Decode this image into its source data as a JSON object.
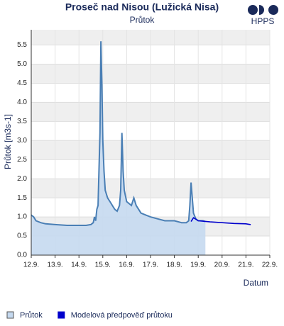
{
  "chart_data": {
    "type": "line",
    "title": "Proseč nad Nisou (Lužická Nisa)",
    "subtitle": "Průtok",
    "logo": "HPPS",
    "y_label": "Průtok [m3s-1]",
    "x_label": "Datum",
    "xlim": [
      12,
      22
    ],
    "xticks": [
      {
        "value": 12,
        "label": "12.9."
      },
      {
        "value": 13,
        "label": "13.9."
      },
      {
        "value": 14,
        "label": "14.9."
      },
      {
        "value": 15,
        "label": "15.9."
      },
      {
        "value": 16,
        "label": "16.9."
      },
      {
        "value": 17,
        "label": "17.9."
      },
      {
        "value": 18,
        "label": "18.9."
      },
      {
        "value": 19,
        "label": "19.9."
      },
      {
        "value": 20,
        "label": "20.9."
      },
      {
        "value": 21,
        "label": "21.9."
      },
      {
        "value": 22,
        "label": "22.9."
      }
    ],
    "ylim": [
      0,
      5.9
    ],
    "yticks": [
      {
        "value": 0,
        "label": "0.0"
      },
      0.5,
      {
        "value": 1,
        "label": "1.0"
      },
      1.5,
      {
        "value": 2,
        "label": "2.0"
      },
      2.5,
      {
        "value": 3,
        "label": "3.0"
      },
      3.5,
      {
        "value": 4,
        "label": "4.0"
      },
      4.5,
      {
        "value": 5,
        "label": "5.0"
      },
      5.5
    ],
    "grid": true,
    "series": [
      {
        "name": "Průtok",
        "color": "#4a7fb5",
        "fill": "#c5d9ef",
        "area": true,
        "x": [
          12.0,
          12.1,
          12.2,
          12.4,
          12.6,
          13.0,
          13.5,
          14.0,
          14.3,
          14.5,
          14.6,
          14.65,
          14.7,
          14.75,
          14.8,
          14.85,
          14.88,
          14.92,
          14.96,
          15.0,
          15.05,
          15.1,
          15.2,
          15.3,
          15.4,
          15.5,
          15.6,
          15.7,
          15.75,
          15.8,
          15.85,
          15.9,
          16.0,
          16.2,
          16.3,
          16.4,
          16.5,
          16.6,
          16.8,
          17.0,
          17.3,
          17.6,
          18.0,
          18.3,
          18.5,
          18.6,
          18.65,
          18.7,
          18.75,
          18.8,
          18.9,
          19.0,
          19.2,
          19.3
        ],
        "values": [
          1.05,
          1.0,
          0.9,
          0.85,
          0.82,
          0.8,
          0.78,
          0.78,
          0.78,
          0.8,
          0.85,
          1.0,
          0.9,
          1.2,
          1.3,
          2.5,
          3.2,
          5.6,
          4.5,
          3.0,
          2.2,
          1.7,
          1.5,
          1.4,
          1.3,
          1.2,
          1.15,
          1.3,
          1.7,
          3.2,
          2.2,
          1.7,
          1.4,
          1.3,
          1.5,
          1.3,
          1.2,
          1.1,
          1.05,
          1.0,
          0.95,
          0.9,
          0.9,
          0.85,
          0.85,
          0.9,
          1.3,
          1.9,
          1.5,
          1.1,
          0.95,
          0.9,
          0.9,
          0.88
        ]
      },
      {
        "name": "Modelová předpověď průtoku",
        "color": "#0000cc",
        "area": false,
        "x": [
          18.7,
          18.8,
          19.0,
          19.5,
          20.0,
          20.5,
          21.0,
          21.2
        ],
        "values": [
          0.88,
          0.98,
          0.9,
          0.87,
          0.85,
          0.83,
          0.82,
          0.8
        ]
      }
    ]
  }
}
